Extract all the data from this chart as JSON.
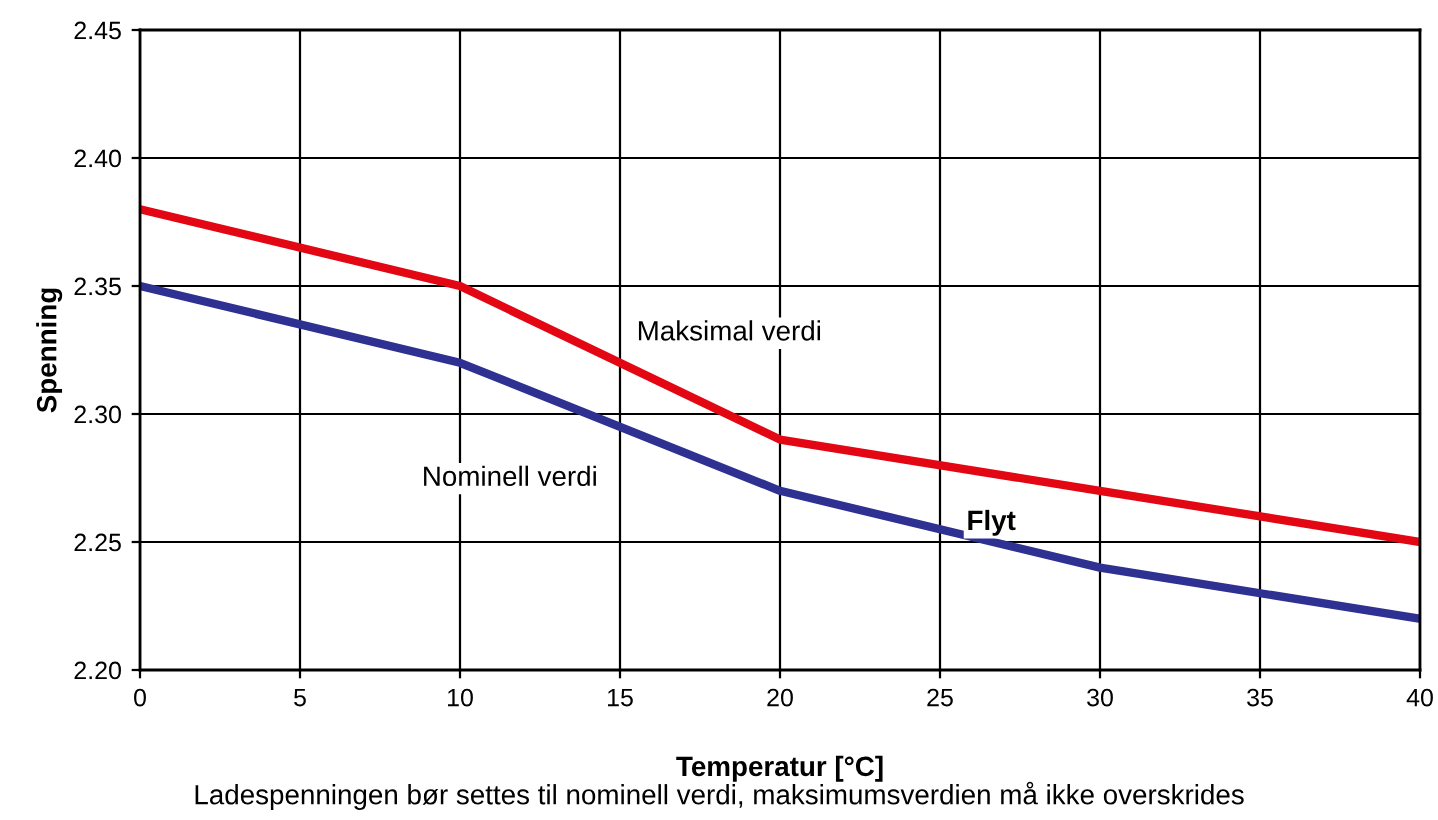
{
  "chart_data": {
    "type": "line",
    "xlabel": "Temperatur [°C]",
    "ylabel": "Spenning",
    "x": [
      0,
      10,
      20,
      30,
      40
    ],
    "series": [
      {
        "name": "Maksimal verdi",
        "color": "#e30613",
        "values": [
          2.38,
          2.35,
          2.29,
          2.27,
          2.25
        ]
      },
      {
        "name": "Nominell verdi",
        "color": "#2e3192",
        "values": [
          2.35,
          2.32,
          2.27,
          2.24,
          2.22
        ]
      }
    ],
    "xlim": [
      0,
      40
    ],
    "xticks": [
      0,
      5,
      10,
      15,
      20,
      25,
      30,
      35,
      40
    ],
    "ylim": [
      2.2,
      2.45
    ],
    "yticks": [
      {
        "value": 2.2,
        "label": "2.20"
      },
      {
        "value": 2.25,
        "label": "2.25"
      },
      {
        "value": 2.3,
        "label": "2.30"
      },
      {
        "value": 2.35,
        "label": "2.35"
      },
      {
        "value": 2.4,
        "label": "2.40"
      },
      {
        "value": 2.45,
        "label": "2.45"
      }
    ],
    "grid": true,
    "legend": false,
    "marker": "none",
    "line_style": "solid",
    "annotations": [
      "Flyt",
      "Ladespenningen bør settes til nominell verdi, maksimumsverdien må ikke overskrides"
    ]
  }
}
